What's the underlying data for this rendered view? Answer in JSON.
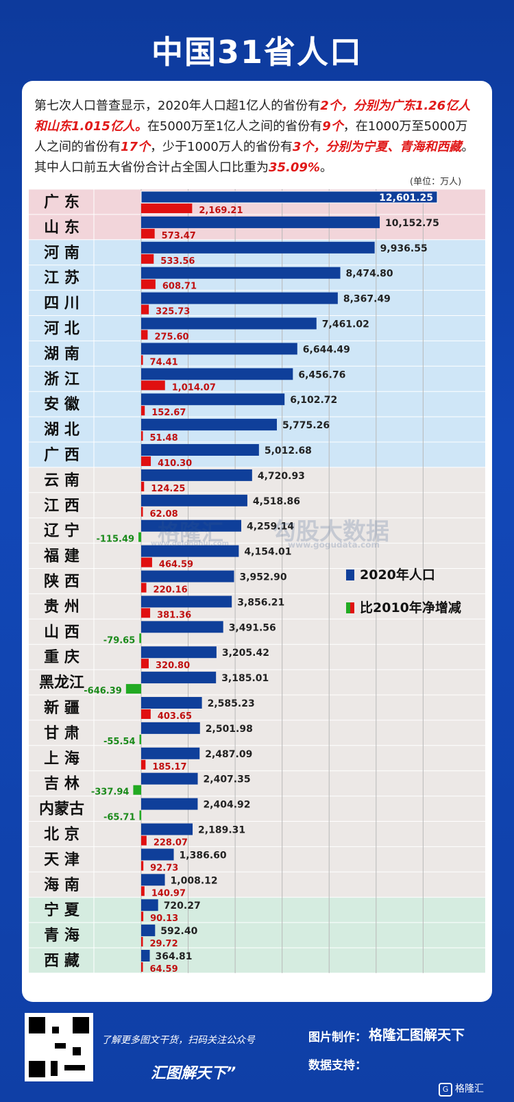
{
  "title": "中国31省人口",
  "intro": {
    "p1": "第七次人口普查显示，2020年人口超1亿人的省份有",
    "r1": "2个，分别为广东1.26亿人和山东1.015亿人。",
    "p2": "在5000万至1亿人之间的省份有",
    "r2": "9个",
    "p3": "，在1000万至5000万人之间的省份有",
    "r3": "17个",
    "p4": "，少于1000万人的省份有",
    "r4": "3个，分别为宁夏、青海和西藏",
    "p5": "。其中人口前五大省份合计占全国人口比重为",
    "r5": "35.09%",
    "p6": "。"
  },
  "unit": "(单位：万人)",
  "legend": {
    "pop_label": "2020年人口",
    "change_label": "比2010年净增减"
  },
  "watermark": {
    "brand1": "格隆汇",
    "site1": "www.gelonghui.com",
    "brand2": "勾股大数据",
    "site2": "www.gogudata.com"
  },
  "colors": {
    "population": "#0f3f9a",
    "increase": "#e01010",
    "decrease": "#22aa22",
    "band_over100m": "#f2d5da",
    "band_50to100m": "#cfe6f7",
    "band_10to50m": "#ece8e6",
    "band_under10m": "#d5ece0"
  },
  "chart_data": {
    "type": "bar",
    "orientation": "horizontal",
    "title": "中国31省人口",
    "unit": "万人",
    "categories": [
      "广 东",
      "山 东",
      "河 南",
      "江 苏",
      "四 川",
      "河 北",
      "湖 南",
      "浙 江",
      "安 徽",
      "湖 北",
      "广 西",
      "云 南",
      "江 西",
      "辽 宁",
      "福 建",
      "陕 西",
      "贵 州",
      "山 西",
      "重 庆",
      "黑龙江",
      "新 疆",
      "甘 肃",
      "上 海",
      "吉 林",
      "内蒙古",
      "北 京",
      "天 津",
      "海 南",
      "宁 夏",
      "青 海",
      "西 藏"
    ],
    "series": [
      {
        "name": "2020年人口",
        "values": [
          12601.25,
          10152.75,
          9936.55,
          8474.8,
          8367.49,
          7461.02,
          6644.49,
          6456.76,
          6102.72,
          5775.26,
          5012.68,
          4720.93,
          4518.86,
          4259.14,
          4154.01,
          3952.9,
          3856.21,
          3491.56,
          3205.42,
          3185.01,
          2585.23,
          2501.98,
          2487.09,
          2407.35,
          2404.92,
          2189.31,
          1386.6,
          1008.12,
          720.27,
          592.4,
          364.81
        ]
      },
      {
        "name": "比2010年净增减",
        "values": [
          2169.21,
          573.47,
          533.56,
          608.71,
          325.73,
          275.6,
          74.41,
          1014.07,
          152.67,
          51.48,
          410.3,
          124.25,
          62.08,
          -115.49,
          464.59,
          220.16,
          381.36,
          -79.65,
          320.8,
          -646.39,
          403.65,
          -55.54,
          185.17,
          -337.94,
          -65.71,
          228.07,
          92.73,
          140.97,
          90.13,
          29.72,
          64.59
        ]
      }
    ],
    "xlim": [
      0,
      13000
    ],
    "grid": true,
    "legend_position": "right"
  }
}
